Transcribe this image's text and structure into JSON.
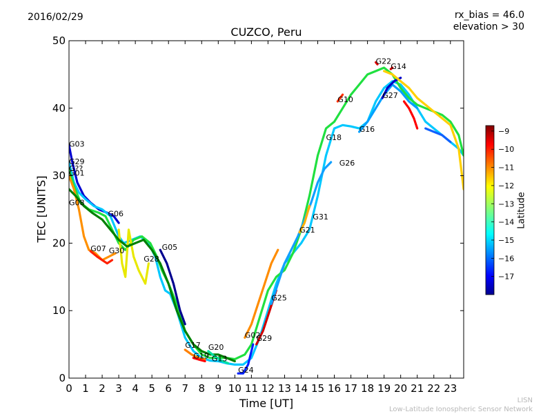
{
  "header": {
    "date": "2016/02/29",
    "bias_line1": "rx_bias = 46.0",
    "bias_line2": "elevation > 30"
  },
  "credit": {
    "line1": "LISN",
    "line2": "Low-Latitude Ionospheric Sensor Network"
  },
  "colors": {
    "colormap": "jet",
    "low": "#00008f",
    "mid": "#7fff7f",
    "high": "#800000"
  },
  "chart_data": {
    "type": "scatter",
    "title": "CUZCO, Peru",
    "xlabel": "Time [UT]",
    "ylabel": "TEC [UNITS]",
    "xlim": [
      0,
      23.8
    ],
    "ylim": [
      0,
      50
    ],
    "xticks": [
      0,
      1,
      2,
      3,
      4,
      5,
      6,
      7,
      8,
      9,
      10,
      11,
      12,
      13,
      14,
      15,
      16,
      17,
      18,
      19,
      20,
      21,
      22,
      23
    ],
    "yticks": [
      0,
      10,
      20,
      30,
      40,
      50
    ],
    "colorbar": {
      "label": "Latitude",
      "range": [
        -18,
        -8.7
      ],
      "ticks": [
        -9,
        -10,
        -11,
        -12,
        -13,
        -14,
        -15,
        -16,
        -17
      ]
    },
    "satellite_labels": [
      {
        "name": "G03",
        "x": 0.0,
        "y": 34.3
      },
      {
        "name": "G29",
        "x": 0.0,
        "y": 31.7
      },
      {
        "name": "G??",
        "x": 0.0,
        "y": 30.7
      },
      {
        "name": "G01",
        "x": 0.0,
        "y": 30.0
      },
      {
        "name": "G08",
        "x": 0.0,
        "y": 25.6
      },
      {
        "name": "G06",
        "x": 2.35,
        "y": 24.0
      },
      {
        "name": "G07",
        "x": 1.3,
        "y": 18.8
      },
      {
        "name": "G30",
        "x": 2.4,
        "y": 18.5
      },
      {
        "name": "G28",
        "x": 4.5,
        "y": 17.3
      },
      {
        "name": "G05",
        "x": 5.6,
        "y": 19.0
      },
      {
        "name": "G17",
        "x": 7.0,
        "y": 4.5
      },
      {
        "name": "G19",
        "x": 7.5,
        "y": 2.9
      },
      {
        "name": "G20",
        "x": 8.4,
        "y": 4.2
      },
      {
        "name": "G13",
        "x": 8.6,
        "y": 2.5
      },
      {
        "name": "G24",
        "x": 10.2,
        "y": 0.8
      },
      {
        "name": "G02",
        "x": 10.6,
        "y": 6.0
      },
      {
        "name": "G29",
        "x": 11.3,
        "y": 5.5
      },
      {
        "name": "G25",
        "x": 12.2,
        "y": 11.5
      },
      {
        "name": "G21",
        "x": 13.9,
        "y": 21.6
      },
      {
        "name": "G31",
        "x": 14.7,
        "y": 23.5
      },
      {
        "name": "G18",
        "x": 15.5,
        "y": 35.3
      },
      {
        "name": "G26",
        "x": 16.3,
        "y": 31.5
      },
      {
        "name": "G10",
        "x": 16.2,
        "y": 40.9
      },
      {
        "name": "G16",
        "x": 17.5,
        "y": 36.5
      },
      {
        "name": "G22",
        "x": 18.5,
        "y": 46.6
      },
      {
        "name": "G14",
        "x": 19.4,
        "y": 45.8
      },
      {
        "name": "G27",
        "x": 18.9,
        "y": 41.5
      }
    ],
    "series": [
      {
        "color": "#0000d0",
        "points": [
          [
            0,
            34.5
          ],
          [
            0.2,
            32
          ],
          [
            0.5,
            29
          ],
          [
            0.9,
            27
          ],
          [
            1.3,
            26
          ],
          [
            1.8,
            25
          ],
          [
            2.3,
            24.5
          ],
          [
            2.7,
            24
          ],
          [
            3,
            23
          ]
        ]
      },
      {
        "color": "#00c8ff",
        "points": [
          [
            0,
            32
          ],
          [
            0.3,
            29
          ],
          [
            0.6,
            27.5
          ],
          [
            1,
            26.5
          ],
          [
            1.5,
            25.5
          ],
          [
            2,
            25
          ],
          [
            2.5,
            24
          ],
          [
            3,
            21
          ],
          [
            3.3,
            20
          ],
          [
            3.8,
            20.5
          ],
          [
            4.3,
            21
          ],
          [
            4.8,
            20
          ],
          [
            5.2,
            18
          ],
          [
            5.5,
            15
          ],
          [
            5.8,
            13
          ],
          [
            6.1,
            12.5
          ],
          [
            6.5,
            10
          ],
          [
            7,
            6
          ],
          [
            7.5,
            4
          ],
          [
            8,
            3
          ],
          [
            8.5,
            2.6
          ],
          [
            9,
            2.5
          ],
          [
            9.5,
            2.2
          ],
          [
            10,
            2
          ],
          [
            10.5,
            2
          ],
          [
            11,
            3
          ],
          [
            11.5,
            6
          ],
          [
            12,
            10
          ],
          [
            12.5,
            14
          ],
          [
            13,
            17
          ],
          [
            13.5,
            18.5
          ],
          [
            14,
            20
          ],
          [
            14.5,
            22
          ],
          [
            15,
            27
          ],
          [
            15.5,
            33
          ],
          [
            16,
            37
          ],
          [
            16.5,
            37.5
          ],
          [
            17,
            37.3
          ],
          [
            17.5,
            37
          ],
          [
            18,
            38
          ],
          [
            18.5,
            41
          ],
          [
            19,
            43
          ],
          [
            19.5,
            44
          ],
          [
            20,
            43.5
          ],
          [
            20.5,
            42
          ],
          [
            21,
            40
          ],
          [
            21.5,
            38
          ],
          [
            22,
            37
          ],
          [
            22.5,
            36
          ],
          [
            23,
            35
          ],
          [
            23.5,
            34
          ],
          [
            23.8,
            33
          ]
        ]
      },
      {
        "color": "#20e040",
        "points": [
          [
            0,
            31
          ],
          [
            0.3,
            28.5
          ],
          [
            0.7,
            26
          ],
          [
            1.2,
            25
          ],
          [
            1.8,
            24.5
          ],
          [
            2.2,
            24
          ],
          [
            2.6,
            22
          ],
          [
            3,
            20
          ],
          [
            3.4,
            19
          ],
          [
            3.9,
            20.5
          ],
          [
            4.4,
            21
          ],
          [
            4.9,
            20
          ],
          [
            5.3,
            18
          ],
          [
            5.6,
            16
          ],
          [
            6,
            14
          ],
          [
            6.5,
            11
          ],
          [
            7,
            7
          ],
          [
            7.5,
            5
          ],
          [
            8,
            3.5
          ],
          [
            8.5,
            3
          ],
          [
            9,
            3
          ],
          [
            9.5,
            3
          ],
          [
            10,
            2.8
          ],
          [
            10.6,
            3.5
          ],
          [
            11,
            5
          ],
          [
            11.5,
            9
          ],
          [
            12,
            13
          ],
          [
            12.5,
            15
          ],
          [
            13,
            16
          ],
          [
            13.5,
            18.5
          ],
          [
            14,
            22
          ],
          [
            14.5,
            27
          ],
          [
            15,
            33
          ],
          [
            15.5,
            37
          ],
          [
            16,
            38
          ],
          [
            16.5,
            40
          ],
          [
            17,
            42
          ],
          [
            17.5,
            43.5
          ],
          [
            18,
            45
          ],
          [
            18.5,
            45.5
          ],
          [
            19,
            46
          ],
          [
            19.5,
            45
          ],
          [
            20,
            43
          ],
          [
            20.5,
            41.5
          ],
          [
            21,
            40.5
          ],
          [
            21.5,
            40
          ],
          [
            22,
            39.5
          ],
          [
            22.5,
            39
          ],
          [
            23,
            38
          ],
          [
            23.5,
            36
          ],
          [
            23.8,
            33
          ]
        ]
      },
      {
        "color": "#ff9000",
        "points": [
          [
            0,
            30
          ],
          [
            0.3,
            28
          ],
          [
            0.6,
            25
          ],
          [
            0.9,
            21
          ],
          [
            1.2,
            19
          ],
          [
            1.6,
            18.5
          ],
          [
            2,
            17.5
          ],
          [
            2.4,
            18
          ],
          [
            2.8,
            18.5
          ]
        ]
      },
      {
        "color": "#ff2000",
        "points": [
          [
            1.3,
            18.8
          ],
          [
            1.7,
            18
          ],
          [
            2,
            17.5
          ],
          [
            2.3,
            17
          ],
          [
            2.6,
            17.5
          ]
        ]
      },
      {
        "color": "#e8e800",
        "points": [
          [
            3,
            22
          ],
          [
            3.2,
            17
          ],
          [
            3.4,
            15
          ],
          [
            3.6,
            22
          ],
          [
            3.9,
            18
          ],
          [
            4.2,
            16
          ],
          [
            4.6,
            14
          ],
          [
            4.8,
            17
          ]
        ]
      },
      {
        "color": "#008000",
        "points": [
          [
            0,
            28
          ],
          [
            0.4,
            27
          ],
          [
            0.9,
            25.5
          ],
          [
            1.4,
            24.5
          ],
          [
            2,
            23.5
          ],
          [
            2.5,
            22
          ],
          [
            3,
            20.5
          ],
          [
            3.5,
            19.5
          ],
          [
            4,
            20
          ],
          [
            4.5,
            20.5
          ],
          [
            5,
            19
          ],
          [
            5.5,
            17
          ],
          [
            6,
            14
          ],
          [
            6.5,
            10
          ],
          [
            7,
            7
          ],
          [
            7.5,
            5
          ],
          [
            8,
            4
          ],
          [
            8.5,
            3.5
          ],
          [
            9,
            3.5
          ],
          [
            9.5,
            3
          ],
          [
            10,
            2.5
          ]
        ]
      },
      {
        "color": "#00008f",
        "points": [
          [
            5.5,
            19
          ],
          [
            5.9,
            17
          ],
          [
            6.3,
            14
          ],
          [
            6.7,
            10
          ],
          [
            7,
            8
          ]
        ]
      },
      {
        "color": "#ff8000",
        "points": [
          [
            7,
            4.2
          ],
          [
            7.4,
            3.5
          ],
          [
            7.8,
            3
          ],
          [
            8.2,
            2.8
          ]
        ]
      },
      {
        "color": "#ff0000",
        "points": [
          [
            7.5,
            3
          ],
          [
            7.9,
            2.7
          ],
          [
            8.2,
            2.5
          ]
        ]
      },
      {
        "color": "#00e0a0",
        "points": [
          [
            8.4,
            4
          ],
          [
            8.8,
            3.2
          ],
          [
            9.2,
            2.6
          ],
          [
            9.6,
            2.2
          ]
        ]
      },
      {
        "color": "#ff8c00",
        "points": [
          [
            10.6,
            6
          ],
          [
            11,
            8
          ],
          [
            11.4,
            11
          ],
          [
            11.8,
            14
          ],
          [
            12.2,
            17
          ],
          [
            12.6,
            19
          ]
        ]
      },
      {
        "color": "#d00000",
        "points": [
          [
            11.3,
            5
          ],
          [
            11.7,
            7
          ],
          [
            12.1,
            10
          ],
          [
            12.5,
            13
          ]
        ]
      },
      {
        "color": "#0020ff",
        "points": [
          [
            10.2,
            0.7
          ],
          [
            10.5,
            0.7
          ],
          [
            10.8,
            2
          ],
          [
            11.1,
            5
          ]
        ]
      },
      {
        "color": "#10a0ff",
        "points": [
          [
            12.2,
            11
          ],
          [
            12.6,
            14
          ],
          [
            13,
            17
          ],
          [
            13.4,
            19
          ],
          [
            13.8,
            21
          ],
          [
            14.2,
            23.5
          ],
          [
            14.6,
            26
          ],
          [
            15,
            29
          ],
          [
            15.4,
            31
          ],
          [
            15.8,
            32
          ]
        ]
      },
      {
        "color": "#ffb000",
        "points": [
          [
            13.9,
            21.6
          ],
          [
            14.2,
            23
          ],
          [
            14.5,
            25.5
          ]
        ]
      },
      {
        "color": "#ff3000",
        "points": [
          [
            16.2,
            41
          ],
          [
            16.5,
            42
          ]
        ]
      },
      {
        "color": "#00a0ff",
        "points": [
          [
            17.5,
            36.5
          ],
          [
            18,
            38
          ],
          [
            18.5,
            40
          ],
          [
            19,
            42
          ],
          [
            19.5,
            43.5
          ],
          [
            20,
            42.5
          ],
          [
            20.5,
            41
          ],
          [
            21,
            40
          ]
        ]
      },
      {
        "color": "#e00000",
        "points": [
          [
            18.5,
            46.8
          ],
          [
            18.6,
            46.5
          ]
        ]
      },
      {
        "color": "#d00000",
        "points": [
          [
            19.4,
            45.8
          ],
          [
            19.5,
            46
          ]
        ]
      },
      {
        "color": "#0000c8",
        "points": [
          [
            18.9,
            41.5
          ],
          [
            19.2,
            43
          ],
          [
            19.6,
            44
          ],
          [
            20,
            44.5
          ]
        ]
      },
      {
        "color": "#ff0000",
        "points": [
          [
            20.2,
            41
          ],
          [
            20.5,
            40
          ],
          [
            20.8,
            38.5
          ],
          [
            21,
            37
          ]
        ]
      },
      {
        "color": "#ffd000",
        "points": [
          [
            19,
            45.5
          ],
          [
            19.5,
            45
          ],
          [
            20,
            44
          ],
          [
            20.5,
            43
          ],
          [
            21,
            41.5
          ],
          [
            21.5,
            40.5
          ],
          [
            22,
            39.5
          ],
          [
            22.5,
            38.5
          ],
          [
            23,
            37.5
          ],
          [
            23.5,
            34
          ],
          [
            23.8,
            28
          ]
        ]
      },
      {
        "color": "#1060ff",
        "points": [
          [
            21.5,
            37
          ],
          [
            22,
            36.5
          ],
          [
            22.5,
            36
          ],
          [
            23,
            35
          ]
        ]
      }
    ]
  }
}
